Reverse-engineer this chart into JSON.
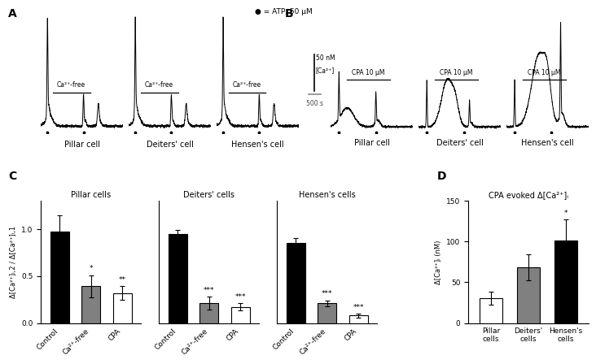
{
  "panel_labels": [
    "A",
    "B",
    "C",
    "D"
  ],
  "trace_A_labels": [
    "Pillar cell",
    "Deiters' cell",
    "Hensen's cell"
  ],
  "trace_B_labels": [
    "Pillar cell",
    "Deiters' cell",
    "Hensen's cell"
  ],
  "atp_label": "● = ATP, 50 μM",
  "ca_free_label": "Ca²⁺-free",
  "cpa_label": "CPA 10 μM",
  "scale_y_text": "50 nM\n[Ca²⁺]",
  "scale_x_text": "500 s",
  "C_title_pillar": "Pillar cells",
  "C_title_deiters": "Deiters' cells",
  "C_title_hensen": "Hensen's cells",
  "C_ylabel": "Δ[Ca²⁺]ᵢ,2 / Δ[Ca²⁺]ᵢ,1",
  "C_xtick_labels": [
    "Control",
    "Ca²⁺-free",
    "CPA"
  ],
  "C_ylim": [
    0,
    1.3
  ],
  "C_yticks": [
    0,
    0.5,
    1.0
  ],
  "C_pillar_values": [
    0.97,
    0.39,
    0.32
  ],
  "C_pillar_errors": [
    0.18,
    0.12,
    0.07
  ],
  "C_pillar_sig": [
    "",
    "*",
    "**"
  ],
  "C_deiters_values": [
    0.95,
    0.21,
    0.17
  ],
  "C_deiters_errors": [
    0.04,
    0.07,
    0.04
  ],
  "C_deiters_sig": [
    "",
    "***",
    "***"
  ],
  "C_hensen_values": [
    0.85,
    0.21,
    0.08
  ],
  "C_hensen_errors": [
    0.05,
    0.03,
    0.02
  ],
  "C_hensen_sig": [
    "",
    "***",
    "***"
  ],
  "C_bar_colors": [
    "#000000",
    "#808080",
    "#ffffff"
  ],
  "C_bar_edgecolors": [
    "#000000",
    "#000000",
    "#000000"
  ],
  "D_title": "CPA evoked Δ[Ca²⁺]ᵢ",
  "D_ylabel": "Δ[Ca²⁺]ᵢ (nM)",
  "D_xtick_labels": [
    "Pillar\ncells",
    "Deiters'\ncells",
    "Hensen's\ncells"
  ],
  "D_ylim": [
    0,
    150
  ],
  "D_yticks": [
    0,
    50,
    100,
    150
  ],
  "D_values": [
    30,
    68,
    101
  ],
  "D_errors": [
    8,
    16,
    26
  ],
  "D_sig": [
    "",
    "",
    "*"
  ],
  "D_bar_colors": [
    "#ffffff",
    "#808080",
    "#000000"
  ],
  "D_bar_edgecolors": [
    "#000000",
    "#000000",
    "#000000"
  ]
}
